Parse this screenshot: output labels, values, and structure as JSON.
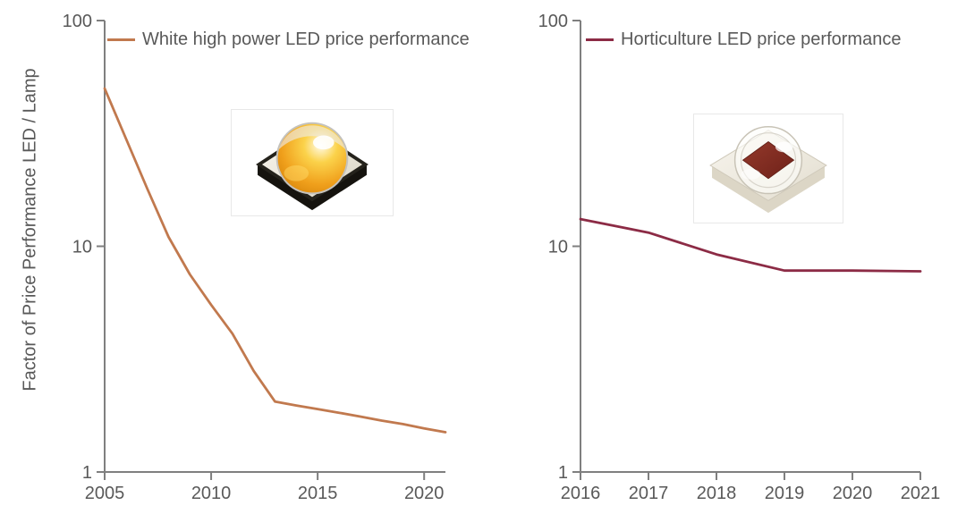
{
  "page": {
    "background": "#FFFFFF"
  },
  "colors": {
    "axis": "#7F7F7F",
    "text": "#595959",
    "white_led_line": "#C1794E",
    "horticulture_led_line": "#8C2B45"
  },
  "y_axis_title": "Factor of Price Performance LED / Lamp",
  "chart_data": [
    {
      "type": "line",
      "name": "white-high-power-led-price-performance",
      "legend": "White high power LED price performance",
      "line_color": "#C1794E",
      "x": [
        2005,
        2006,
        2007,
        2008,
        2009,
        2010,
        2011,
        2012,
        2013,
        2014,
        2015,
        2016,
        2017,
        2018,
        2019,
        2020,
        2021
      ],
      "values": [
        50,
        30,
        18,
        11,
        7.5,
        5.5,
        4.1,
        2.8,
        2.05,
        1.97,
        1.9,
        1.83,
        1.76,
        1.69,
        1.63,
        1.56,
        1.5
      ],
      "x_range": [
        2005,
        2021
      ],
      "x_ticks": [
        2005,
        2010,
        2015,
        2020
      ],
      "x_tick_labels": [
        "2005",
        "2010",
        "2015",
        "2020"
      ],
      "y_scale": "log",
      "ylim": [
        1,
        100
      ],
      "y_ticks": [
        1,
        10,
        100
      ],
      "y_tick_labels": [
        "1",
        "10",
        "100"
      ],
      "ylabel": "Factor of Price Performance LED / Lamp",
      "grid": false,
      "legend_position": "top-left-inside",
      "inset_image": "white-high-power-led-chip-photo"
    },
    {
      "type": "line",
      "name": "horticulture-led-price-performance",
      "legend": "Horticulture LED price performance",
      "line_color": "#8C2B45",
      "x": [
        2016,
        2017,
        2018,
        2019,
        2020,
        2021
      ],
      "values": [
        13.2,
        11.5,
        9.2,
        7.8,
        7.8,
        7.75
      ],
      "x_range": [
        2016,
        2021
      ],
      "x_ticks": [
        2016,
        2017,
        2018,
        2019,
        2020,
        2021
      ],
      "x_tick_labels": [
        "2016",
        "2017",
        "2018",
        "2019",
        "2020",
        "2021"
      ],
      "y_scale": "log",
      "ylim": [
        1,
        100
      ],
      "y_ticks": [
        1,
        10,
        100
      ],
      "y_tick_labels": [
        "1",
        "10",
        "100"
      ],
      "ylabel": "",
      "grid": false,
      "legend_position": "top-left-inside",
      "inset_image": "horticulture-led-chip-photo"
    }
  ]
}
